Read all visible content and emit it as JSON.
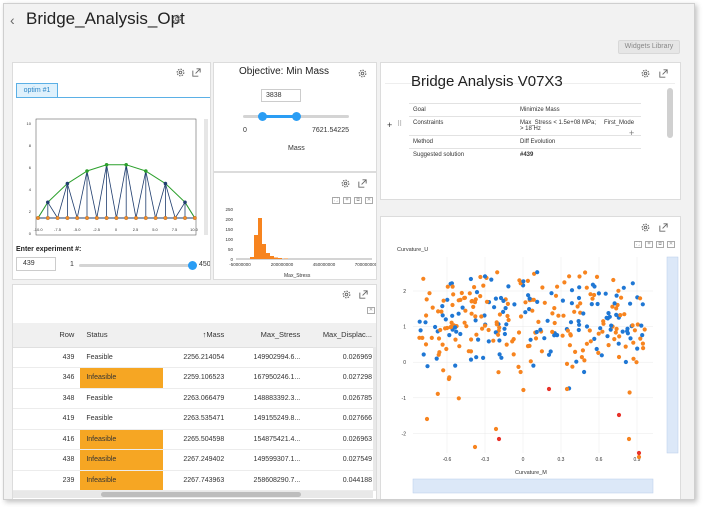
{
  "page": {
    "title": "Bridge_Analysis_Opt",
    "widgets_library_label": "Widgets Library"
  },
  "experiment_panel": {
    "tab_label": "optim #1",
    "enter_label": "Enter experiment #:",
    "experiment_value": "439",
    "slider_min": "1",
    "slider_max": "450",
    "slider_value_fraction": 0.975,
    "plot": {
      "x_ticks": [
        "-10.0",
        "-7.5",
        "-5.0",
        "-2.5",
        "0",
        "2.5",
        "5.0",
        "7.5",
        "10.0"
      ],
      "y_ticks": [
        "10",
        "8",
        "6",
        "4",
        "2",
        "0"
      ]
    }
  },
  "objective_panel": {
    "title": "Objective: Min Mass",
    "input_value": "3838",
    "range_min": "0",
    "range_max": "7621.54225",
    "range_low_fraction": 0.18,
    "range_high_fraction": 0.5,
    "axis_label": "Mass"
  },
  "histogram_panel": {
    "x_ticks": [
      "-50000000",
      "200000000",
      "450000000",
      "700000000"
    ],
    "y_ticks": [
      "250",
      "200",
      "150",
      "100",
      "50",
      "0"
    ],
    "xlabel": "Max_Stress"
  },
  "report_panel": {
    "title": "Bridge Analysis V07X3",
    "rows": [
      {
        "key": "Goal",
        "value": "Minimize Mass"
      },
      {
        "key": "Constraints",
        "value": "Max_Stress < 1.5e+08 MPa;",
        "value2": "First_Mode > 18 Hz"
      },
      {
        "key": "Method",
        "value": "Diff Evolution"
      },
      {
        "key": "Suggested solution",
        "value": "#439"
      }
    ]
  },
  "scatter_panel": {
    "ylabel": "Curvature_U",
    "xlabel": "Curvature_M",
    "x_ticks": [
      "-0.6",
      "-0.3",
      "0",
      "0.3",
      "0.6",
      "0.9"
    ],
    "y_ticks": [
      "2",
      "1",
      "0",
      "-1",
      "-2"
    ],
    "colors": {
      "feasible": "#1f77d4",
      "infeasible": "#f7841f",
      "highlight": "#e8322a"
    }
  },
  "table_panel": {
    "columns": [
      "Row",
      "Status",
      "↑Mass",
      "Max_Stress",
      "Max_Displac..."
    ],
    "rows": [
      {
        "row": "439",
        "status": "Feasible",
        "mass": "2256.214054",
        "stress": "149902994.6...",
        "disp": "0.026969",
        "infeasible": false
      },
      {
        "row": "346",
        "status": "Infeasible",
        "mass": "2259.106523",
        "stress": "167950246.1...",
        "disp": "0.027298",
        "infeasible": true
      },
      {
        "row": "348",
        "status": "Feasible",
        "mass": "2263.066479",
        "stress": "148883392.3...",
        "disp": "0.026785",
        "infeasible": false
      },
      {
        "row": "419",
        "status": "Feasible",
        "mass": "2263.535471",
        "stress": "149155249.8...",
        "disp": "0.027666",
        "infeasible": false
      },
      {
        "row": "416",
        "status": "Infeasible",
        "mass": "2265.504598",
        "stress": "154875421.4...",
        "disp": "0.026963",
        "infeasible": true
      },
      {
        "row": "438",
        "status": "Infeasible",
        "mass": "2267.249402",
        "stress": "149599307.1...",
        "disp": "0.027549",
        "infeasible": true
      },
      {
        "row": "239",
        "status": "Infeasible",
        "mass": "2267.743963",
        "stress": "258608290.7...",
        "disp": "0.044188",
        "infeasible": true
      }
    ]
  },
  "colors": {
    "accent": "#2a9df4",
    "infeasible_badge": "#f6a623"
  }
}
